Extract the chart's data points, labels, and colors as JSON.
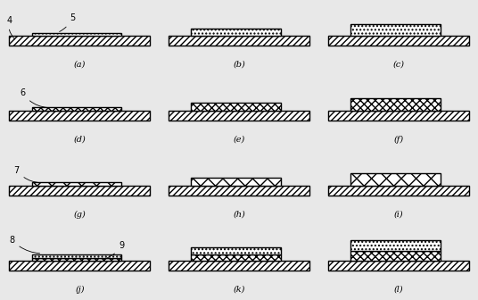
{
  "fig_width": 5.36,
  "fig_height": 3.36,
  "dpi": 100,
  "bg_color": "#e8e8e8",
  "labels": [
    "(a)",
    "(b)",
    "(c)",
    "(d)",
    "(e)",
    "(f)",
    "(g)",
    "(h)",
    "(i)",
    "(j)",
    "(k)",
    "(l)"
  ],
  "base_hatch": "/////",
  "base_lw": 1.0,
  "col_scales": [
    1.0,
    2.2,
    3.4
  ],
  "anno_fontsize": 7,
  "label_fontsize": 7
}
